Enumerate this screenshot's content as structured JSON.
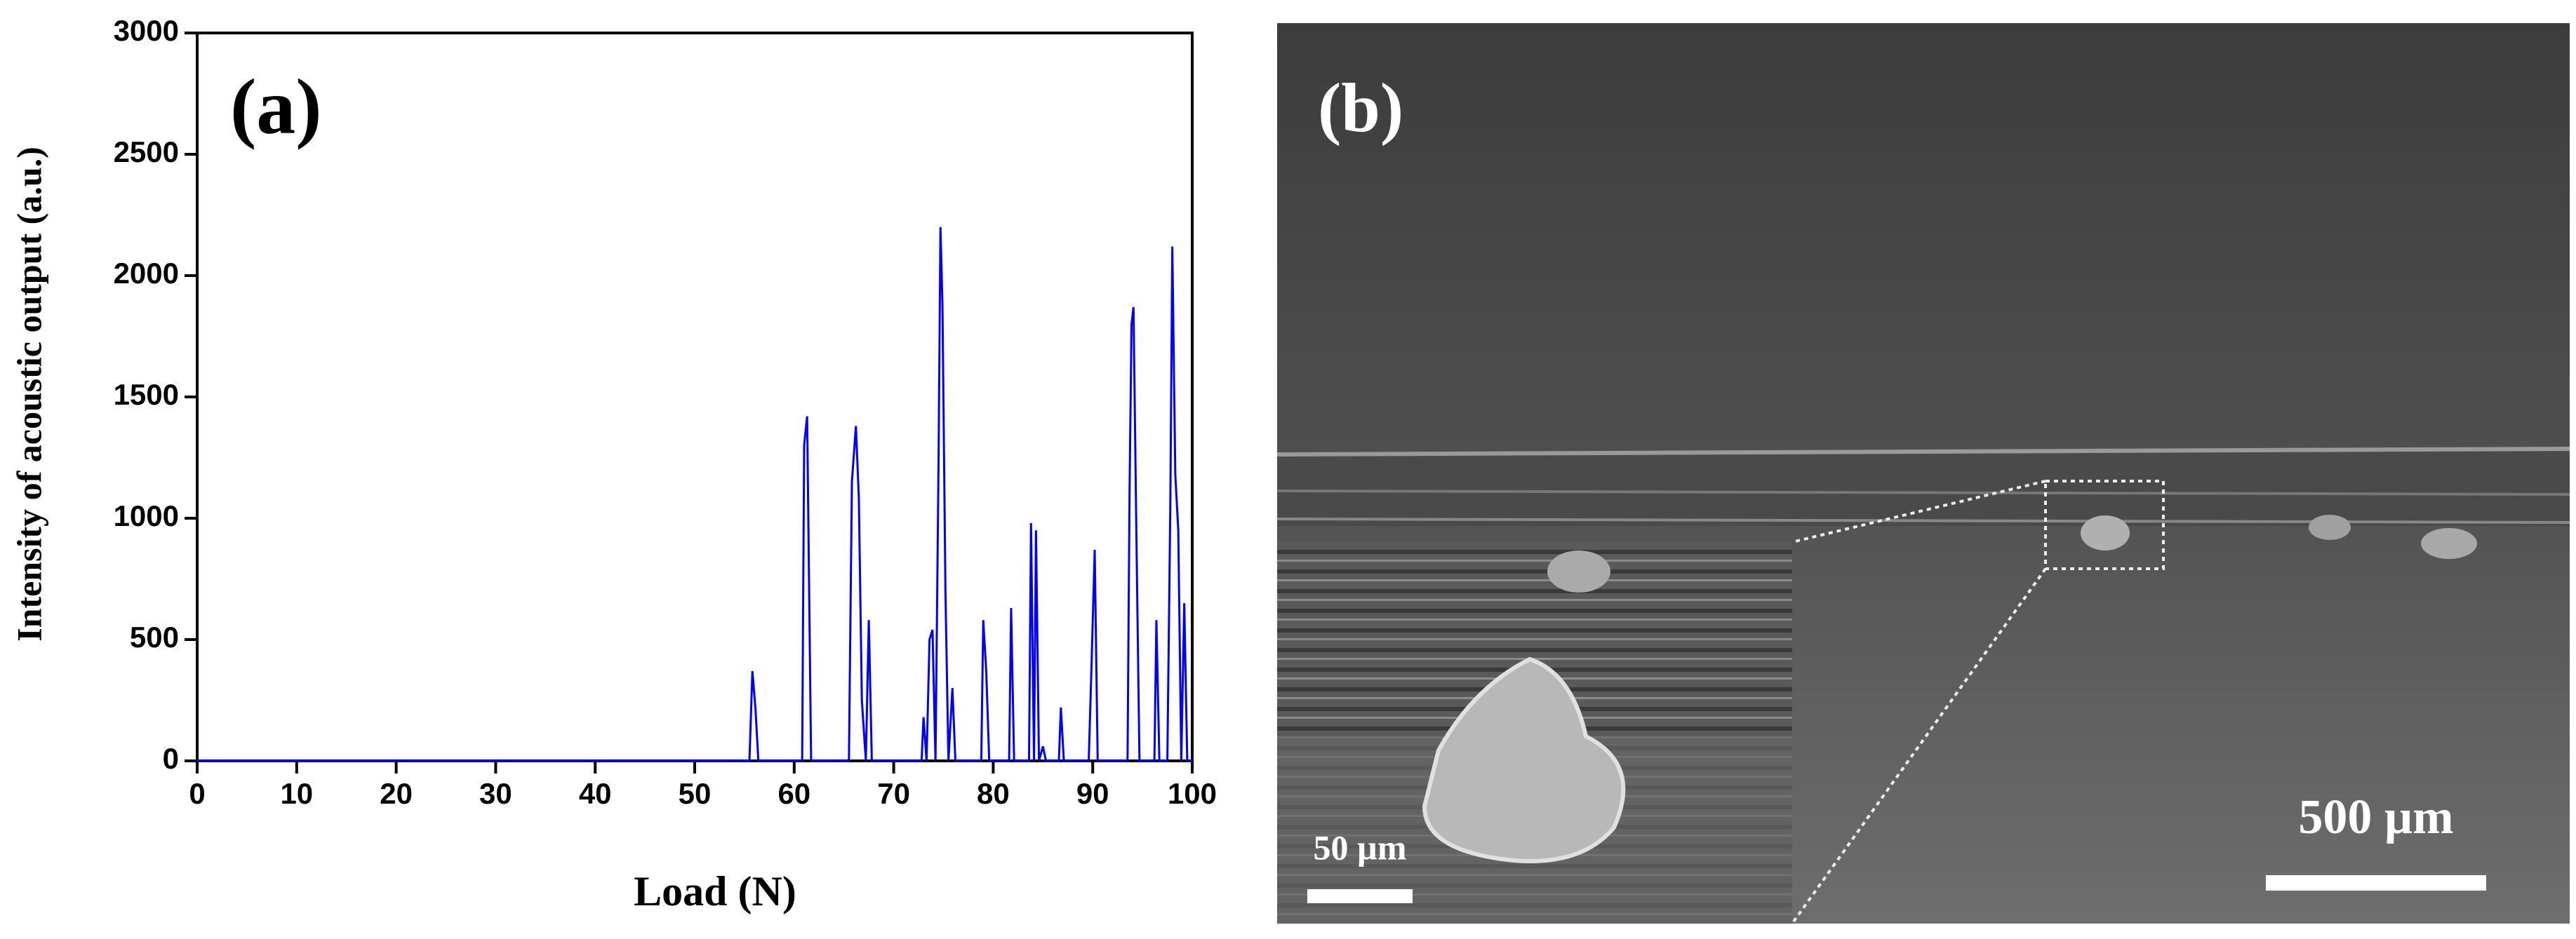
{
  "chart_data": {
    "type": "line",
    "annotations": [
      "(a)"
    ],
    "x_label": "Load (N)",
    "y_label": "Intensity of acoustic output (a.u.)",
    "x": [
      0,
      55.5,
      55.8,
      56.1,
      56.4,
      60.8,
      61.0,
      61.3,
      61.7,
      65.5,
      65.8,
      66.2,
      66.5,
      66.8,
      67.2,
      67.5,
      67.8,
      72.8,
      73.0,
      73.3,
      73.6,
      73.9,
      74.2,
      74.5,
      74.7,
      74.9,
      75.2,
      75.5,
      75.9,
      76.2,
      78.8,
      79.0,
      79.3,
      79.6,
      81.6,
      81.8,
      82.1,
      83.6,
      83.8,
      84.1,
      84.3,
      84.6,
      85.0,
      85.3,
      86.6,
      86.8,
      87.1,
      89.6,
      89.9,
      90.2,
      90.5,
      93.5,
      93.7,
      93.9,
      94.1,
      94.4,
      94.7,
      96.2,
      96.4,
      96.7,
      97.5,
      97.8,
      98.0,
      98.3,
      98.6,
      98.9,
      99.2,
      99.5,
      100
    ],
    "series": [
      {
        "color": "#0000ff",
        "values": [
          0,
          0,
          370,
          220,
          0,
          0,
          1300,
          1420,
          0,
          0,
          1150,
          1380,
          1080,
          250,
          0,
          580,
          0,
          0,
          180,
          0,
          500,
          540,
          0,
          1200,
          2200,
          1880,
          700,
          0,
          300,
          0,
          0,
          580,
          370,
          0,
          0,
          630,
          0,
          0,
          980,
          0,
          950,
          0,
          60,
          0,
          0,
          220,
          0,
          0,
          420,
          870,
          0,
          0,
          1100,
          1800,
          1870,
          900,
          0,
          0,
          580,
          0,
          0,
          1050,
          2120,
          1180,
          950,
          0,
          650,
          0,
          0
        ]
      }
    ],
    "xlim": [
      0,
      100
    ],
    "xticks": [
      0,
      10,
      20,
      30,
      40,
      50,
      60,
      70,
      80,
      90,
      100
    ],
    "ylim": [
      0,
      3000
    ],
    "yticks": [
      0,
      500,
      1000,
      1500,
      2000,
      2500,
      3000
    ]
  },
  "image_panel": {
    "label": "(b)",
    "scale_bar": "500 µm",
    "inset_scale_bar": "50 µm"
  }
}
